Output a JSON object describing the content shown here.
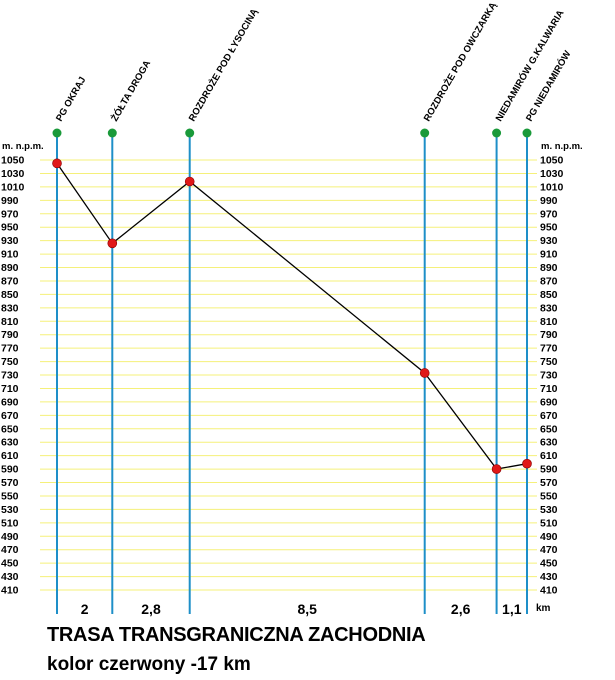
{
  "chart_data": {
    "type": "line",
    "title": "TRASA TRANSGRANICZNA ZACHODNIA",
    "subtitle": "kolor czerwony -17 km",
    "ylabel": "m. n.p.m.",
    "distance_unit": "km",
    "ylim": [
      400,
      1060
    ],
    "y_ticks": [
      1050,
      1030,
      1010,
      990,
      970,
      950,
      930,
      910,
      890,
      870,
      850,
      830,
      810,
      790,
      770,
      750,
      730,
      710,
      690,
      670,
      650,
      630,
      610,
      590,
      570,
      550,
      530,
      510,
      490,
      470,
      450,
      430,
      410
    ],
    "grid": true,
    "points": [
      {
        "name": "PG OKRAJ",
        "km": 0,
        "elevation": 1045
      },
      {
        "name": "ŻÓŁTA DROGA",
        "km": 2,
        "elevation": 926
      },
      {
        "name": "ROZDROŻE POD ŁYSOCINĄ",
        "km": 4.8,
        "elevation": 1018
      },
      {
        "name": "ROZDROŻE POD OWCZARKĄ",
        "km": 13.3,
        "elevation": 733
      },
      {
        "name": "NIEDAMIRÓW G.KALWARIA",
        "km": 15.9,
        "elevation": 590
      },
      {
        "name": "PG NIEDAMIRÓW",
        "km": 17,
        "elevation": 598
      }
    ],
    "segments": [
      "2",
      "2,8",
      "8,5",
      "2,6",
      "1,1"
    ]
  },
  "colors": {
    "grid": "#f5f07a",
    "station_line": "#1e8fc8",
    "station_marker": "#1a9a3a",
    "data_point": "#e01818",
    "profile_line": "#000000"
  }
}
